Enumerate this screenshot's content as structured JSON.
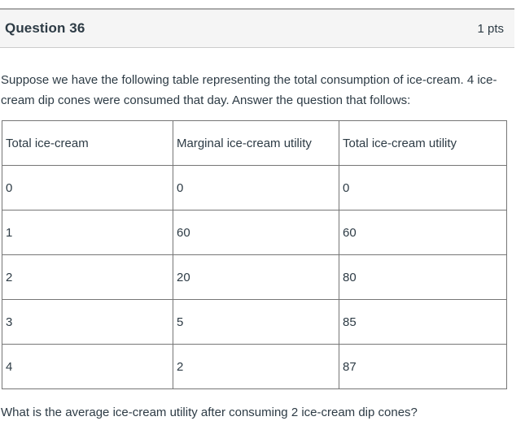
{
  "header": {
    "title": "Question 36",
    "points": "1 pts"
  },
  "body": {
    "intro": "Suppose we have the following table representing the total consumption of ice-cream. 4 ice-cream dip cones were consumed that day. Answer the question that follows:",
    "prompt": "What is the average ice-cream utility after consuming 2 ice-cream dip cones?"
  },
  "table": {
    "columns": [
      "Total ice-cream",
      "Marginal ice-cream utility",
      "Total ice-cream utility"
    ],
    "rows": [
      [
        "0",
        "0",
        "0"
      ],
      [
        "1",
        "60",
        "60"
      ],
      [
        "2",
        "20",
        "80"
      ],
      [
        "3",
        "5",
        "85"
      ],
      [
        "4",
        "2",
        "87"
      ]
    ]
  },
  "colors": {
    "header_bg": "#f5f5f5",
    "header_border": "#a9a9a9",
    "table_border": "#767676",
    "text": "#2d3b45",
    "divider": "#dedede"
  }
}
